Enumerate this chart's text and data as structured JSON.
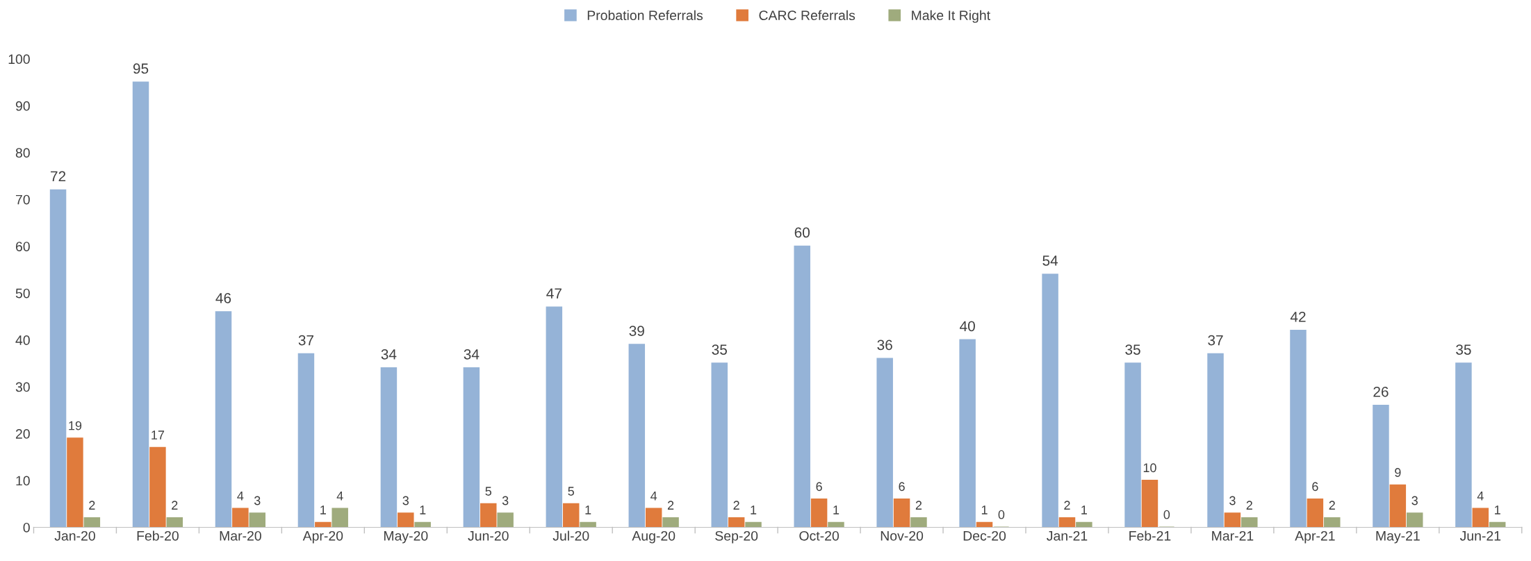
{
  "chart_data": {
    "type": "bar",
    "categories": [
      "Jan-20",
      "Feb-20",
      "Mar-20",
      "Apr-20",
      "May-20",
      "Jun-20",
      "Jul-20",
      "Aug-20",
      "Sep-20",
      "Oct-20",
      "Nov-20",
      "Dec-20",
      "Jan-21",
      "Feb-21",
      "Mar-21",
      "Apr-21",
      "May-21",
      "Jun-21"
    ],
    "series": [
      {
        "name": "Probation Referrals",
        "color": "#95b3d7",
        "values": [
          72,
          95,
          46,
          37,
          34,
          34,
          47,
          39,
          35,
          60,
          36,
          40,
          54,
          35,
          37,
          42,
          26,
          35
        ]
      },
      {
        "name": "CARC Referrals",
        "color": "#e07b3c",
        "values": [
          19,
          17,
          4,
          1,
          3,
          5,
          5,
          4,
          2,
          6,
          6,
          1,
          2,
          10,
          3,
          6,
          9,
          4
        ]
      },
      {
        "name": "Make It Right",
        "color": "#9fab7d",
        "values": [
          2,
          2,
          3,
          4,
          1,
          3,
          1,
          2,
          1,
          1,
          2,
          0,
          1,
          0,
          2,
          2,
          3,
          1
        ]
      }
    ],
    "ylim": [
      0,
      100
    ],
    "yticks": [
      0,
      10,
      20,
      30,
      40,
      50,
      60,
      70,
      80,
      90,
      100
    ],
    "data_labels": true,
    "grid": false,
    "legend": "top"
  }
}
